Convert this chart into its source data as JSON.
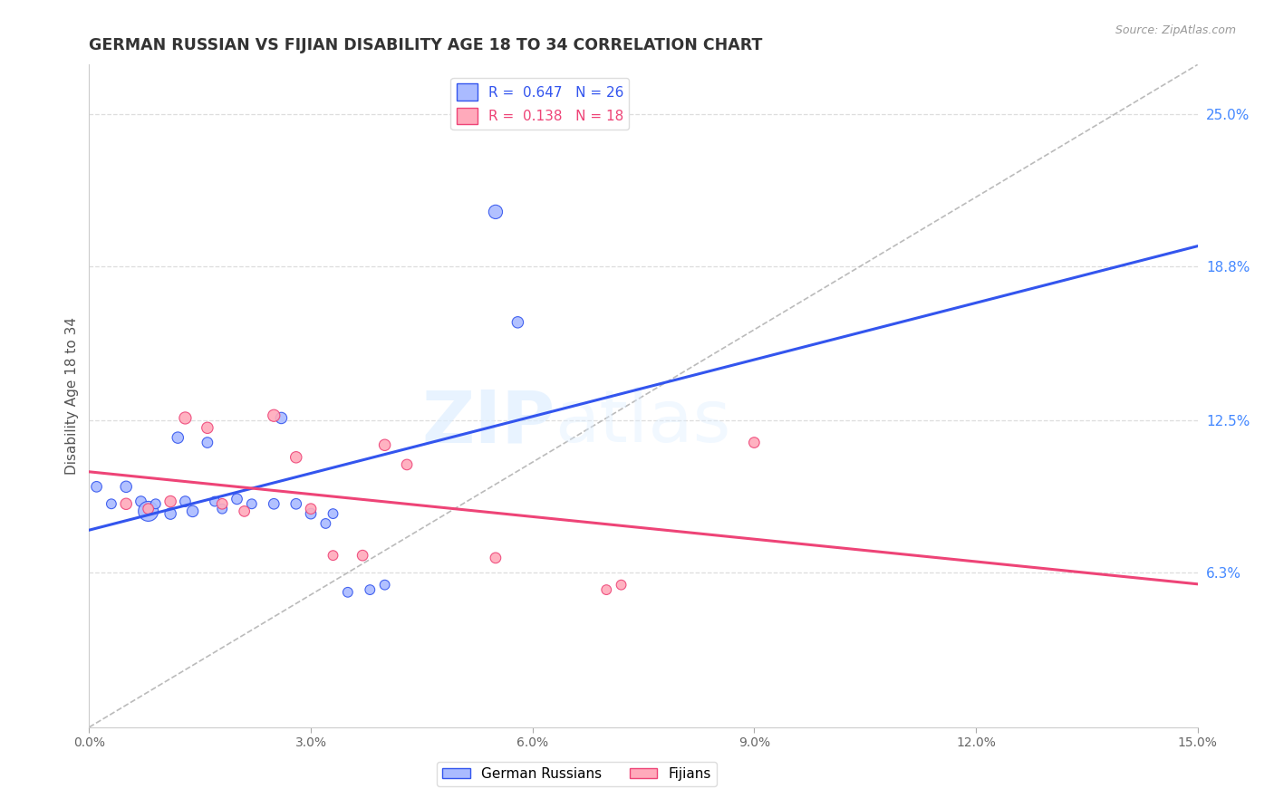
{
  "title": "GERMAN RUSSIAN VS FIJIAN DISABILITY AGE 18 TO 34 CORRELATION CHART",
  "source": "Source: ZipAtlas.com",
  "ylabel": "Disability Age 18 to 34",
  "x_min": 0.0,
  "x_max": 0.15,
  "y_min": 0.0,
  "y_max": 0.27,
  "y_tick_labels_right": [
    "6.3%",
    "12.5%",
    "18.8%",
    "25.0%"
  ],
  "y_tick_values_right": [
    0.063,
    0.125,
    0.188,
    0.25
  ],
  "legend_label1": "R =  0.647   N = 26",
  "legend_label2": "R =  0.138   N = 18",
  "blue_scatter_color": "#aabbff",
  "pink_scatter_color": "#ffaabb",
  "blue_line_color": "#3355ee",
  "pink_line_color": "#ee4477",
  "dashed_line_color": "#bbbbbb",
  "grid_color": "#dddddd",
  "background_color": "#ffffff",
  "blue_points_x": [
    0.005,
    0.007,
    0.008,
    0.009,
    0.011,
    0.013,
    0.014,
    0.016,
    0.017,
    0.018,
    0.02,
    0.022,
    0.026,
    0.028,
    0.03,
    0.032,
    0.001,
    0.003,
    0.055,
    0.058,
    0.038,
    0.04,
    0.012,
    0.025,
    0.033,
    0.035
  ],
  "blue_points_y": [
    0.098,
    0.092,
    0.088,
    0.091,
    0.087,
    0.092,
    0.088,
    0.116,
    0.092,
    0.089,
    0.093,
    0.091,
    0.126,
    0.091,
    0.087,
    0.083,
    0.098,
    0.091,
    0.21,
    0.165,
    0.056,
    0.058,
    0.118,
    0.091,
    0.087,
    0.055
  ],
  "pink_points_x": [
    0.005,
    0.008,
    0.011,
    0.013,
    0.016,
    0.018,
    0.021,
    0.025,
    0.028,
    0.03,
    0.033,
    0.037,
    0.04,
    0.043,
    0.055,
    0.07,
    0.072,
    0.09
  ],
  "pink_points_y": [
    0.091,
    0.089,
    0.092,
    0.126,
    0.122,
    0.091,
    0.088,
    0.127,
    0.11,
    0.089,
    0.07,
    0.07,
    0.115,
    0.107,
    0.069,
    0.056,
    0.058,
    0.116
  ],
  "blue_bubble_sizes": [
    80,
    70,
    250,
    60,
    80,
    70,
    80,
    70,
    60,
    60,
    70,
    60,
    80,
    70,
    70,
    60,
    70,
    60,
    120,
    80,
    60,
    60,
    80,
    70,
    60,
    60
  ],
  "pink_bubble_sizes": [
    80,
    70,
    80,
    90,
    80,
    70,
    70,
    90,
    80,
    70,
    60,
    70,
    80,
    70,
    70,
    60,
    60,
    70
  ]
}
